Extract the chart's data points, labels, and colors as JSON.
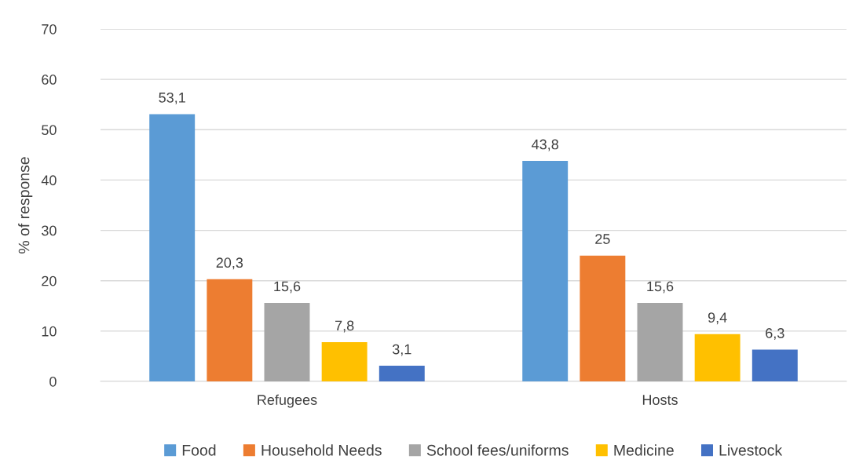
{
  "chart_data": {
    "type": "bar",
    "ylabel": "% of response",
    "categories": [
      "Refugees",
      "Hosts"
    ],
    "series": [
      {
        "name": "Food",
        "color": "#5b9bd5",
        "values": [
          53.1,
          43.8
        ],
        "value_labels": [
          "53,1",
          "43,8"
        ]
      },
      {
        "name": "Household Needs",
        "color": "#ed7d31",
        "values": [
          20.3,
          25
        ],
        "value_labels": [
          "20,3",
          "25"
        ]
      },
      {
        "name": "School fees/uniforms",
        "color": "#a5a5a5",
        "values": [
          15.6,
          15.6
        ],
        "value_labels": [
          "15,6",
          "15,6"
        ]
      },
      {
        "name": "Medicine",
        "color": "#ffc000",
        "values": [
          7.8,
          9.4
        ],
        "value_labels": [
          "7,8",
          "9,4"
        ]
      },
      {
        "name": "Livestock",
        "color": "#4472c4",
        "values": [
          3.1,
          6.3
        ],
        "value_labels": [
          "3,1",
          "6,3"
        ]
      }
    ],
    "ylim": [
      0,
      70
    ],
    "yticks": [
      0,
      10,
      20,
      30,
      40,
      50,
      60,
      70
    ],
    "grid": "y",
    "legend": "bottom"
  }
}
